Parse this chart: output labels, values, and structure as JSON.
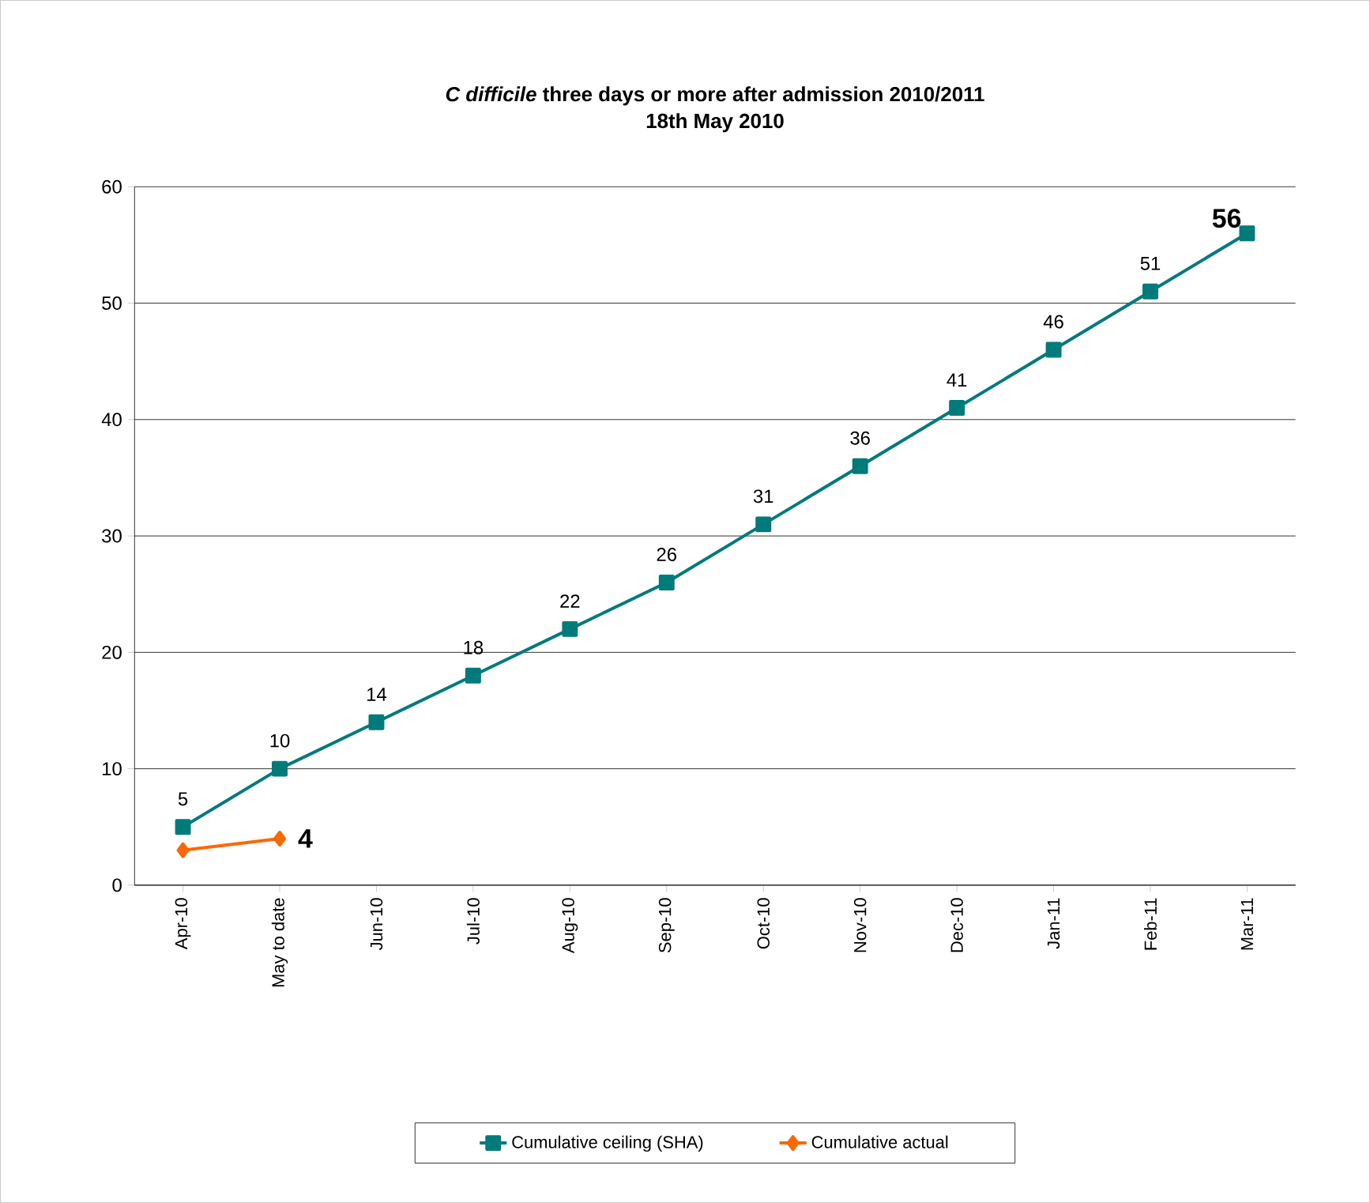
{
  "chart_data": {
    "type": "line",
    "title": "*C difficile* three days or more after admission 2010/2011",
    "subtitle": "18th May 2010",
    "categories": [
      "Apr-10",
      "May to date",
      "Jun-10",
      "Jul-10",
      "Aug-10",
      "Sep-10",
      "Oct-10",
      "Nov-10",
      "Dec-10",
      "Jan-11",
      "Feb-11",
      "Mar-11"
    ],
    "series": [
      {
        "name": "Cumulative ceiling (SHA)",
        "color": "#007b7b",
        "marker": "square",
        "values": [
          5,
          10,
          14,
          18,
          22,
          26,
          31,
          36,
          41,
          46,
          51,
          56
        ],
        "value_labels": [
          "5",
          "10",
          "14",
          "18",
          "22",
          "26",
          "31",
          "36",
          "41",
          "46",
          "51",
          "56"
        ]
      },
      {
        "name": "Cumulative actual",
        "color": "#ff6600",
        "marker": "diamond",
        "values": [
          3,
          4,
          null,
          null,
          null,
          null,
          null,
          null,
          null,
          null,
          null,
          null
        ],
        "value_labels": [
          null,
          "4",
          null,
          null,
          null,
          null,
          null,
          null,
          null,
          null,
          null,
          null
        ]
      }
    ],
    "ylim": [
      0,
      60
    ],
    "yticks": [
      0,
      10,
      20,
      30,
      40,
      50,
      60
    ],
    "grid": "y",
    "legend": "bottom",
    "line_style": "solid"
  }
}
